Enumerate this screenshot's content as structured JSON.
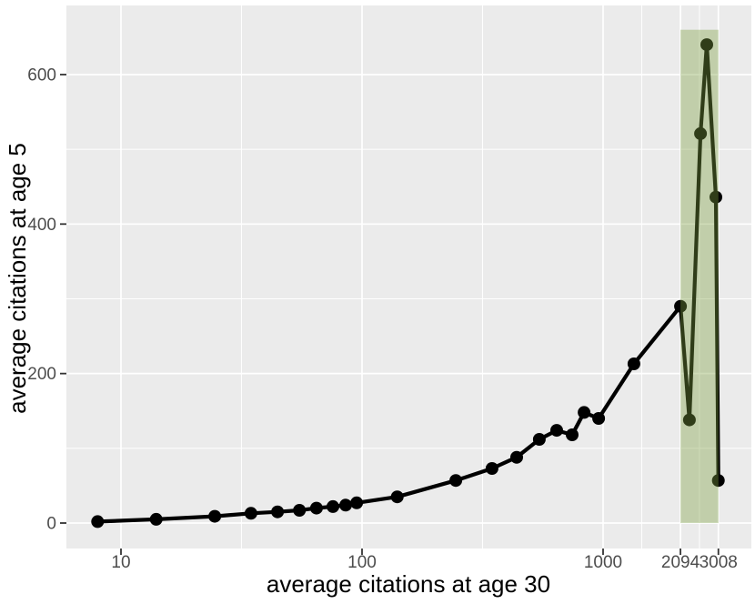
{
  "chart_data": {
    "type": "line",
    "title": "",
    "xlabel": "average citations at age 30",
    "ylabel": "average citations at age 5",
    "x_scale": "log10",
    "grid": true,
    "legend": false,
    "points": {
      "x": [
        8,
        14,
        24.5,
        34.6,
        44.6,
        55,
        64.7,
        75.7,
        85.5,
        95,
        140,
        245,
        346,
        438,
        544,
        642,
        744,
        834,
        958,
        1343,
        2094,
        2281,
        2535,
        2692,
        2938,
        3008
      ],
      "y": [
        2,
        5,
        9,
        13,
        15,
        17,
        20,
        22,
        24,
        27,
        35,
        57,
        73,
        88,
        112,
        124,
        118,
        148,
        140,
        213,
        290,
        138,
        521,
        640,
        436,
        57
      ]
    },
    "x_axis": {
      "tick_values": [
        10,
        100,
        1000,
        2094,
        3008
      ],
      "tick_labels": [
        "10",
        "100",
        "1000",
        "2094",
        "3008"
      ],
      "minor_tick_values": [
        31.6,
        316,
        1446,
        2511
      ]
    },
    "y_axis": {
      "tick_values": [
        0,
        200,
        400,
        600
      ],
      "tick_labels": [
        "0",
        "200",
        "400",
        "600"
      ],
      "minor_tick_values": [
        100,
        300,
        500
      ],
      "range": [
        0,
        692
      ]
    },
    "highlight_band": {
      "x_min": 2094,
      "x_max": 3008,
      "y_min": 0,
      "y_max": 660
    },
    "style": {
      "panel_bg": "#ebebeb",
      "grid_color": "#ffffff",
      "line_color": "#000000",
      "point_color": "#000000",
      "band_fill": "rgba(125,160,66,0.38)",
      "tick_text_color": "#4d4d4d",
      "tick_mark_color": "#333333",
      "axis_title_color": "#000000"
    }
  }
}
